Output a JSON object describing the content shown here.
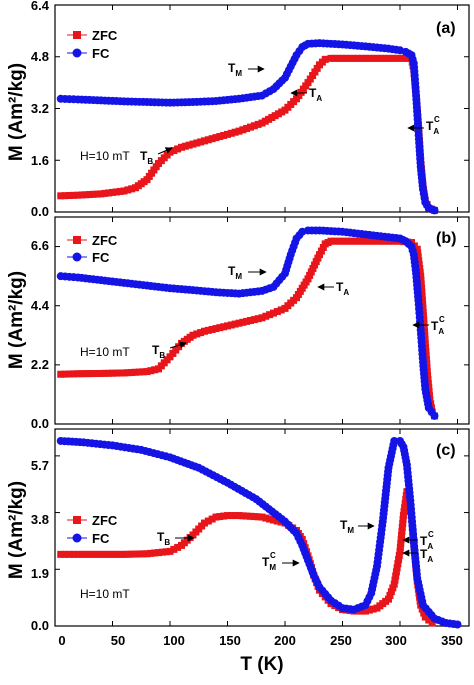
{
  "figure": {
    "xlabel": "T (K)",
    "ylabel": "M (Am²/kg)",
    "x_ticks": [
      "0",
      "50",
      "100",
      "150",
      "200",
      "250",
      "300",
      "350"
    ]
  },
  "chart_data": [
    {
      "type": "line",
      "panel_label": "(a)",
      "field_note": "H=10 mT",
      "xlabel": "T (K)",
      "ylabel": "M (Am²/kg)",
      "xlim": [
        0,
        360
      ],
      "ylim": [
        0,
        6.4
      ],
      "y_ticks": [
        "0.0",
        "1.6",
        "3.2",
        "4.8",
        "6.4"
      ],
      "legend_position": "top-left",
      "series": [
        {
          "name": "ZFC",
          "color": "#e8161b",
          "marker": "square",
          "x": [
            5,
            20,
            40,
            60,
            70,
            80,
            90,
            100,
            110,
            120,
            140,
            160,
            180,
            200,
            210,
            220,
            230,
            235,
            240,
            250,
            270,
            290,
            300,
            310,
            312,
            314,
            316,
            318,
            320,
            322,
            325,
            330
          ],
          "y": [
            0.5,
            0.52,
            0.56,
            0.65,
            0.75,
            1.0,
            1.5,
            1.85,
            2.0,
            2.1,
            2.3,
            2.5,
            2.75,
            3.15,
            3.5,
            4.0,
            4.55,
            4.72,
            4.75,
            4.75,
            4.75,
            4.75,
            4.75,
            4.75,
            4.4,
            3.6,
            2.7,
            1.6,
            0.8,
            0.35,
            0.12,
            0.05
          ]
        },
        {
          "name": "FC",
          "color": "#1414e6",
          "marker": "circle",
          "x": [
            5,
            20,
            40,
            60,
            80,
            100,
            120,
            140,
            160,
            180,
            190,
            200,
            205,
            210,
            215,
            220,
            230,
            250,
            270,
            290,
            300,
            305,
            310,
            312,
            314,
            316,
            318,
            320,
            322,
            325,
            330
          ],
          "y": [
            3.5,
            3.48,
            3.45,
            3.42,
            3.4,
            3.38,
            3.4,
            3.43,
            3.5,
            3.6,
            3.8,
            4.15,
            4.5,
            4.85,
            5.1,
            5.2,
            5.22,
            5.18,
            5.12,
            5.05,
            5.0,
            4.95,
            4.85,
            4.6,
            3.6,
            2.5,
            1.4,
            0.7,
            0.3,
            0.12,
            0.05
          ]
        }
      ],
      "annotations": [
        {
          "text": "T",
          "sub": "M",
          "sup": ""
        },
        {
          "text": "T",
          "sub": "A",
          "sup": ""
        },
        {
          "text": "T",
          "sub": "A",
          "sup": "C"
        },
        {
          "text": "T",
          "sub": "B",
          "sup": ""
        }
      ]
    },
    {
      "type": "line",
      "panel_label": "(b)",
      "field_note": "H=10 mT",
      "xlabel": "T (K)",
      "ylabel": "M (Am²/kg)",
      "xlim": [
        0,
        360
      ],
      "ylim": [
        0,
        7.7
      ],
      "y_ticks": [
        "0.0",
        "2.2",
        "4.4",
        "6.6"
      ],
      "legend_position": "top-left",
      "series": [
        {
          "name": "ZFC",
          "color": "#e8161b",
          "marker": "square",
          "x": [
            5,
            20,
            40,
            60,
            80,
            90,
            100,
            110,
            120,
            130,
            140,
            160,
            180,
            200,
            210,
            220,
            230,
            235,
            240,
            260,
            280,
            300,
            310,
            315,
            318,
            320,
            322,
            324,
            326,
            328,
            330
          ],
          "y": [
            1.85,
            1.87,
            1.88,
            1.9,
            1.95,
            2.05,
            2.5,
            3.0,
            3.3,
            3.45,
            3.55,
            3.75,
            3.95,
            4.3,
            4.7,
            5.4,
            6.3,
            6.7,
            6.8,
            6.8,
            6.8,
            6.8,
            6.75,
            6.5,
            5.5,
            4.3,
            3.0,
            1.8,
            0.9,
            0.45,
            0.3
          ]
        },
        {
          "name": "FC",
          "color": "#1414e6",
          "marker": "circle",
          "x": [
            5,
            20,
            40,
            60,
            80,
            100,
            120,
            140,
            160,
            180,
            190,
            200,
            205,
            210,
            215,
            220,
            230,
            250,
            270,
            290,
            300,
            305,
            310,
            312,
            314,
            316,
            318,
            320,
            322,
            325,
            330
          ],
          "y": [
            5.5,
            5.45,
            5.35,
            5.25,
            5.15,
            5.05,
            4.98,
            4.9,
            4.85,
            4.95,
            5.1,
            5.6,
            6.3,
            6.9,
            7.15,
            7.2,
            7.2,
            7.15,
            7.05,
            6.95,
            6.9,
            6.8,
            6.6,
            6.3,
            5.6,
            4.6,
            3.5,
            2.3,
            1.3,
            0.6,
            0.3
          ]
        }
      ],
      "annotations": [
        {
          "text": "T",
          "sub": "M",
          "sup": ""
        },
        {
          "text": "T",
          "sub": "A",
          "sup": ""
        },
        {
          "text": "T",
          "sub": "A",
          "sup": "C"
        },
        {
          "text": "T",
          "sub": "B",
          "sup": ""
        }
      ]
    },
    {
      "type": "line",
      "panel_label": "(c)",
      "field_note": "H=10 mT",
      "xlabel": "T (K)",
      "ylabel": "M (Am²/kg)",
      "xlim": [
        0,
        360
      ],
      "ylim": [
        0,
        6.6
      ],
      "y_ticks": [
        "0.0",
        "1.9",
        "3.8",
        "5.7"
      ],
      "legend_position": "center-left",
      "series": [
        {
          "name": "ZFC",
          "color": "#e8161b",
          "marker": "square",
          "x": [
            5,
            20,
            40,
            60,
            80,
            100,
            110,
            120,
            130,
            140,
            150,
            160,
            180,
            200,
            210,
            215,
            220,
            225,
            230,
            240,
            250,
            260,
            270,
            280,
            290,
            295,
            300,
            303,
            306,
            309,
            312,
            315,
            318,
            322,
            328
          ],
          "y": [
            2.4,
            2.4,
            2.4,
            2.4,
            2.42,
            2.5,
            2.7,
            3.05,
            3.45,
            3.65,
            3.7,
            3.7,
            3.65,
            3.45,
            3.2,
            2.9,
            2.35,
            1.7,
            1.2,
            0.75,
            0.55,
            0.5,
            0.5,
            0.6,
            0.9,
            1.4,
            2.5,
            3.7,
            4.5,
            4.1,
            2.8,
            1.5,
            0.7,
            0.3,
            0.1
          ]
        },
        {
          "name": "FC",
          "color": "#1414e6",
          "marker": "circle",
          "x": [
            5,
            25,
            50,
            75,
            100,
            125,
            150,
            175,
            200,
            210,
            215,
            220,
            225,
            230,
            240,
            250,
            260,
            270,
            275,
            280,
            285,
            290,
            295,
            300,
            303,
            306,
            309,
            312,
            315,
            320,
            330,
            340,
            350
          ],
          "y": [
            6.2,
            6.15,
            6.05,
            5.9,
            5.65,
            5.3,
            4.8,
            4.25,
            3.5,
            3.1,
            2.7,
            2.2,
            1.7,
            1.3,
            0.85,
            0.6,
            0.55,
            0.7,
            1.1,
            2.0,
            3.5,
            5.3,
            6.2,
            6.2,
            6.0,
            5.4,
            4.2,
            2.8,
            1.6,
            0.7,
            0.25,
            0.1,
            0.05
          ]
        }
      ],
      "annotations": [
        {
          "text": "T",
          "sub": "B",
          "sup": ""
        },
        {
          "text": "T",
          "sub": "M",
          "sup": ""
        },
        {
          "text": "T",
          "sub": "M",
          "sup": "C"
        },
        {
          "text": "T",
          "sub": "A",
          "sup": "C"
        },
        {
          "text": "T",
          "sub": "A",
          "sup": ""
        }
      ]
    }
  ]
}
